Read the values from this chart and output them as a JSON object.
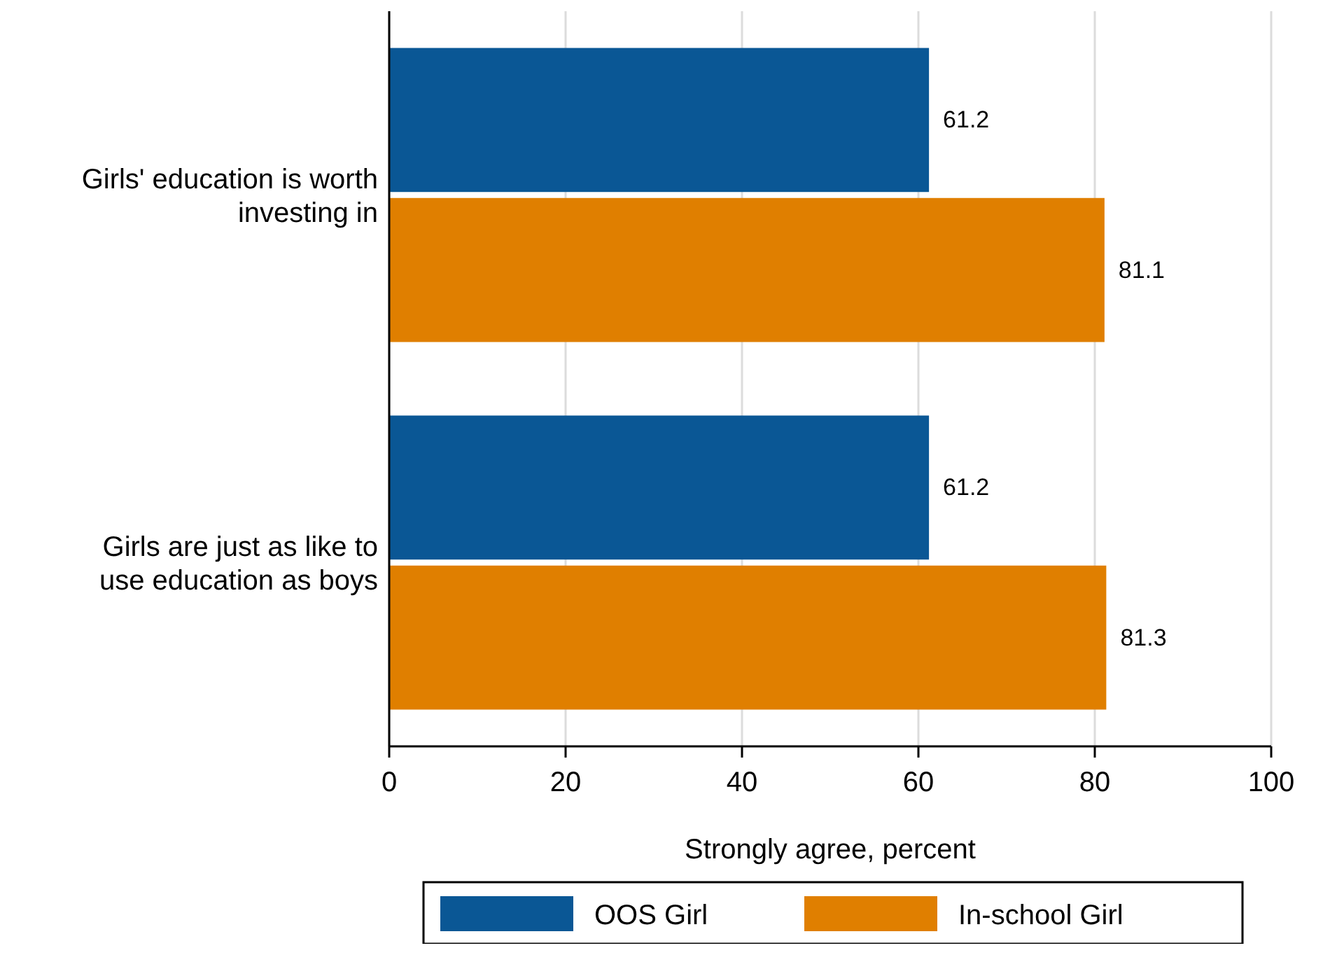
{
  "chart_data": {
    "type": "bar",
    "orientation": "horizontal",
    "categories": [
      "Girls' education is worth investing in",
      "Girls are just as like to use education as boys"
    ],
    "series": [
      {
        "name": "OOS Girl",
        "color": "#0a5795",
        "values": [
          61.2,
          61.2
        ]
      },
      {
        "name": "In-school Girl",
        "color": "#e07f00",
        "values": [
          81.1,
          81.3
        ]
      }
    ],
    "xlabel": "Strongly agree, percent",
    "xlim": [
      0,
      100
    ],
    "xticks": [
      0,
      20,
      40,
      60,
      80,
      100
    ],
    "grid": "x",
    "legend": "bottom",
    "data_labels": true
  }
}
